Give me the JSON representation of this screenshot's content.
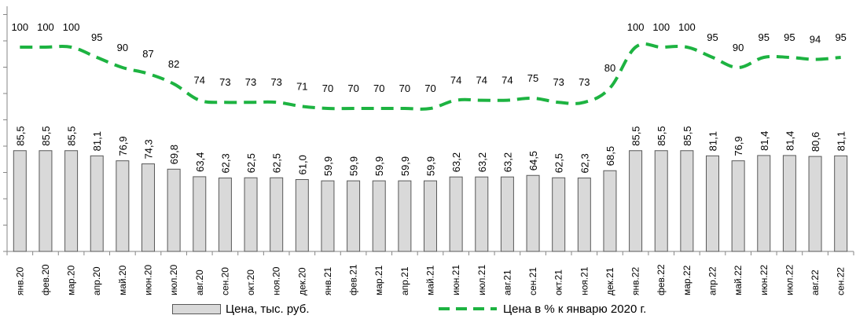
{
  "chart_data": {
    "type": "bar",
    "categories": [
      "янв.20",
      "фев.20",
      "мар.20",
      "апр.20",
      "май.20",
      "июн.20",
      "июл.20",
      "авг.20",
      "сен.20",
      "окт.20",
      "ноя.20",
      "дек.20",
      "янв.21",
      "фев.21",
      "мар.21",
      "апр.21",
      "май.21",
      "июн.21",
      "июл.21",
      "авг.21",
      "сен.21",
      "окт.21",
      "ноя.21",
      "дек.21",
      "янв.22",
      "фев.22",
      "мар.22",
      "апр.22",
      "май.22",
      "июн.22",
      "июл.22",
      "авг.22",
      "сен.22"
    ],
    "series": [
      {
        "name": "Цена, тыс. руб.",
        "kind": "bar",
        "values": [
          85.5,
          85.5,
          85.5,
          81.1,
          76.9,
          74.3,
          69.8,
          63.4,
          62.3,
          62.5,
          62.5,
          61.0,
          59.9,
          59.9,
          59.9,
          59.9,
          59.9,
          63.2,
          63.2,
          63.2,
          64.5,
          62.5,
          62.3,
          68.5,
          85.5,
          85.5,
          85.5,
          81.1,
          76.9,
          81.4,
          81.4,
          80.6,
          81.1
        ],
        "labels": [
          "85,5",
          "85,5",
          "85,5",
          "81,1",
          "76,9",
          "74,3",
          "69,8",
          "63,4",
          "62,3",
          "62,5",
          "62,5",
          "61,0",
          "59,9",
          "59,9",
          "59,9",
          "59,9",
          "59,9",
          "63,2",
          "63,2",
          "63,2",
          "64,5",
          "62,5",
          "62,3",
          "68,5",
          "85,5",
          "85,5",
          "85,5",
          "81,1",
          "76,9",
          "81,4",
          "81,4",
          "80,6",
          "81,1"
        ],
        "color": "#d9d9d9"
      },
      {
        "name": "Цена в % к январю 2020 г.",
        "kind": "line",
        "style": "dashed",
        "values": [
          100,
          100,
          100,
          95,
          90,
          87,
          82,
          74,
          73,
          73,
          73,
          71,
          70,
          70,
          70,
          70,
          70,
          74,
          74,
          74,
          75,
          73,
          73,
          80,
          100,
          100,
          100,
          95,
          90,
          95,
          95,
          94,
          95
        ],
        "labels": [
          "100",
          "100",
          "100",
          "95",
          "90",
          "87",
          "82",
          "74",
          "73",
          "73",
          "73",
          "71",
          "70",
          "70",
          "70",
          "70",
          "70",
          "74",
          "74",
          "74",
          "75",
          "73",
          "73",
          "80",
          "100",
          "100",
          "100",
          "95",
          "90",
          "95",
          "95",
          "94",
          "95"
        ],
        "color": "#1db341"
      }
    ],
    "grid": false,
    "legend_position": "bottom"
  }
}
